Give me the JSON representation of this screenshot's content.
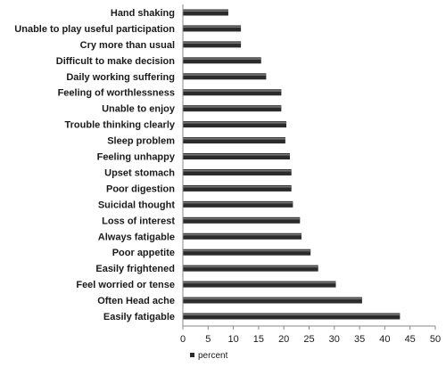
{
  "chart_data": {
    "type": "bar",
    "orientation": "horizontal",
    "categories": [
      "Hand shaking",
      "Unable to play useful participation",
      "Cry more than usual",
      "Difficult to make decision",
      "Daily working suffering",
      "Feeling of worthlessness",
      "Unable to enjoy",
      "Trouble thinking clearly",
      "Sleep problem",
      "Feeling unhappy",
      "Upset stomach",
      "Poor digestion",
      "Suicidal thought",
      "Loss of interest",
      "Always fatigable",
      "Poor appetite",
      "Easily frightened",
      "Feel worried or  tense",
      "Often Head ache",
      "Easily fatigable"
    ],
    "series": [
      {
        "name": "percent",
        "values": [
          9,
          11.5,
          11.5,
          15.5,
          16.5,
          19.5,
          19.5,
          20.5,
          20.3,
          21.2,
          21.5,
          21.5,
          21.8,
          23.2,
          23.5,
          25.3,
          26.8,
          30.3,
          35.5,
          43
        ]
      }
    ],
    "xticks": [
      "0",
      "5",
      "10",
      "15",
      "20",
      "25",
      "30",
      "35",
      "40",
      "45",
      "50"
    ],
    "xlim": [
      0,
      50
    ],
    "grid": false,
    "legend_position": "bottom",
    "bar_color": "#2b2b2b"
  }
}
